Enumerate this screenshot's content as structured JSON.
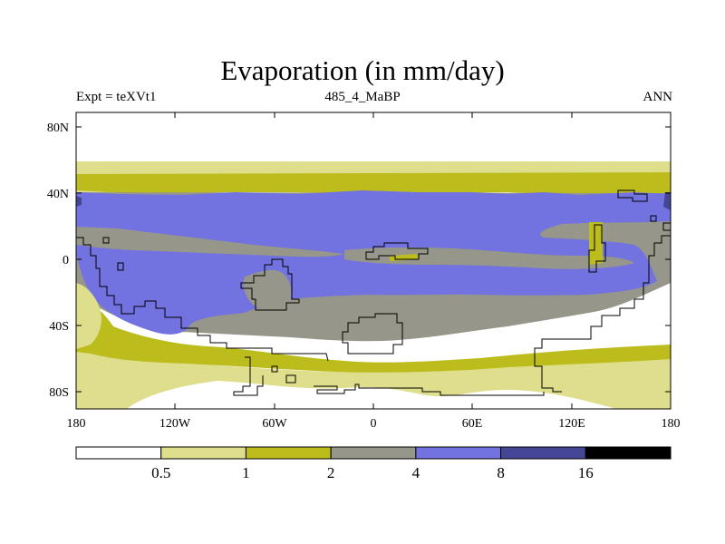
{
  "title": "Evaporation (in mm/day)",
  "subtitle_left": "Expt = teXVt1",
  "subtitle_center": "485_4_MaBP",
  "subtitle_right": "ANN",
  "y_ticks": [
    "80N",
    "40N",
    "0",
    "40S",
    "80S"
  ],
  "x_ticks": [
    "180",
    "120W",
    "60W",
    "0",
    "60E",
    "120E",
    "180"
  ],
  "legend": {
    "colors": [
      "#ffffff",
      "#dede8c",
      "#bcbc1c",
      "#96968a",
      "#7272e0",
      "#464696",
      "#000000"
    ],
    "labels": [
      "0.5",
      "1",
      "2",
      "4",
      "8",
      "16"
    ]
  }
}
